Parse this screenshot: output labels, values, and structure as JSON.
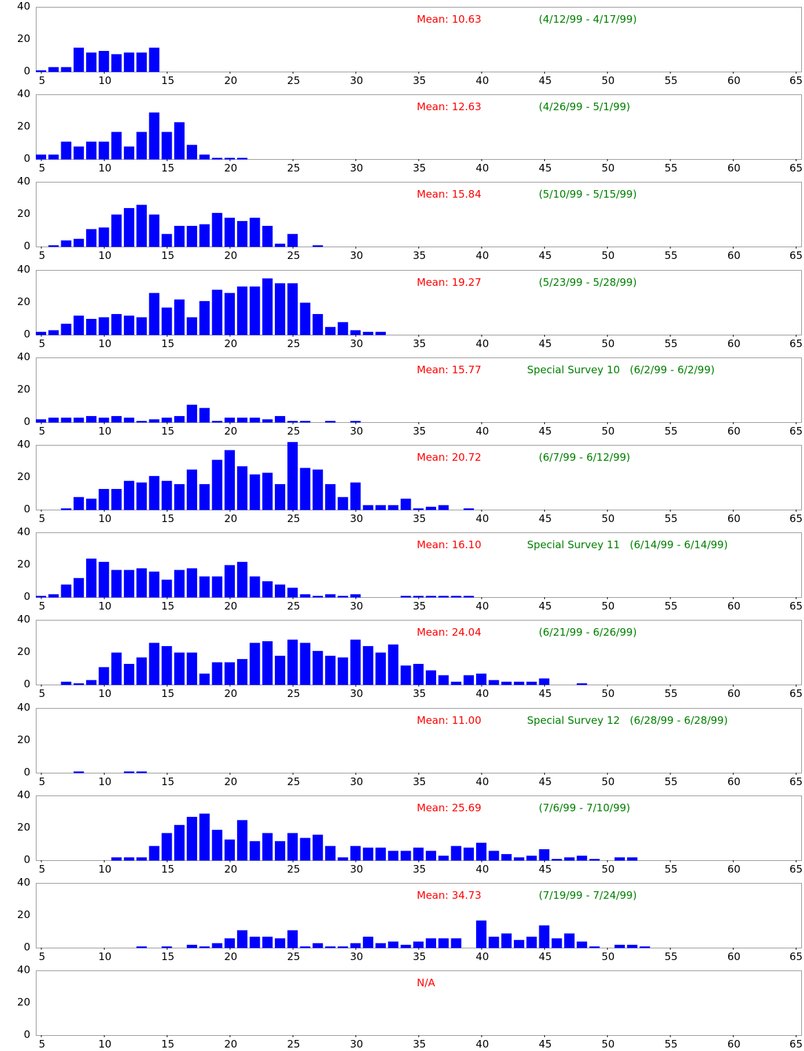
{
  "chart_data": [
    {
      "type": "bar",
      "mean_text": "Mean: 10.63",
      "period_text": "(4/12/99 - 4/17/99)",
      "y_ticks": [
        "40",
        "20",
        "0"
      ],
      "ylim": [
        0,
        40
      ],
      "x_ticks": [
        "5",
        "10",
        "15",
        "20",
        "25",
        "30",
        "35",
        "40",
        "45",
        "50",
        "55",
        "60",
        "65"
      ],
      "xlim": [
        4.5,
        65
      ],
      "x": [
        5,
        6,
        7,
        8,
        9,
        10,
        11,
        12,
        13,
        14
      ],
      "values": [
        1,
        3,
        3,
        15,
        12,
        13,
        11,
        12,
        12,
        15
      ]
    },
    {
      "type": "bar",
      "mean_text": "Mean: 12.63",
      "period_text": "(4/26/99 - 5/1/99)",
      "y_ticks": [
        "40",
        "20",
        "0"
      ],
      "ylim": [
        0,
        40
      ],
      "x_ticks": [
        "5",
        "10",
        "15",
        "20",
        "25",
        "30",
        "35",
        "40",
        "45",
        "50",
        "55",
        "60",
        "65"
      ],
      "xlim": [
        4.5,
        65
      ],
      "x": [
        5,
        6,
        7,
        8,
        9,
        10,
        11,
        12,
        13,
        14,
        15,
        16,
        17,
        18,
        19,
        20,
        21
      ],
      "values": [
        3,
        3,
        11,
        8,
        11,
        11,
        17,
        8,
        17,
        29,
        17,
        23,
        9,
        3,
        1,
        1,
        1
      ]
    },
    {
      "type": "bar",
      "mean_text": "Mean: 15.84",
      "period_text": "(5/10/99 - 5/15/99)",
      "y_ticks": [
        "40",
        "20",
        "0"
      ],
      "ylim": [
        0,
        40
      ],
      "x_ticks": [
        "5",
        "10",
        "15",
        "20",
        "25",
        "30",
        "35",
        "40",
        "45",
        "50",
        "55",
        "60",
        "65"
      ],
      "xlim": [
        4.5,
        65
      ],
      "x": [
        6,
        7,
        8,
        9,
        10,
        11,
        12,
        13,
        14,
        15,
        16,
        17,
        18,
        19,
        20,
        21,
        22,
        23,
        24,
        25,
        27
      ],
      "values": [
        1,
        4,
        5,
        11,
        12,
        20,
        24,
        26,
        20,
        8,
        13,
        13,
        14,
        21,
        18,
        16,
        18,
        13,
        2,
        8,
        1
      ]
    },
    {
      "type": "bar",
      "mean_text": "Mean: 19.27",
      "period_text": "(5/23/99 - 5/28/99)",
      "y_ticks": [
        "40",
        "20",
        "0"
      ],
      "ylim": [
        0,
        40
      ],
      "x_ticks": [
        "5",
        "10",
        "15",
        "20",
        "25",
        "30",
        "35",
        "40",
        "45",
        "50",
        "55",
        "60",
        "65"
      ],
      "xlim": [
        4.5,
        65
      ],
      "x": [
        5,
        6,
        7,
        8,
        9,
        10,
        11,
        12,
        13,
        14,
        15,
        16,
        17,
        18,
        19,
        20,
        21,
        22,
        23,
        24,
        25,
        26,
        27,
        28,
        29,
        30,
        31,
        32
      ],
      "values": [
        2,
        3,
        7,
        12,
        10,
        11,
        13,
        12,
        11,
        26,
        17,
        22,
        11,
        21,
        28,
        26,
        30,
        30,
        35,
        32,
        32,
        20,
        13,
        5,
        8,
        3,
        2,
        2
      ]
    },
    {
      "type": "bar",
      "mean_text": "Mean: 15.77",
      "period_text": "Special Survey 10   (6/2/99 - 6/2/99)",
      "y_ticks": [
        "40",
        "20",
        "0"
      ],
      "ylim": [
        0,
        40
      ],
      "x_ticks": [
        "5",
        "10",
        "15",
        "20",
        "25",
        "30",
        "35",
        "40",
        "45",
        "50",
        "55",
        "60",
        "65"
      ],
      "xlim": [
        4.5,
        65
      ],
      "x": [
        5,
        6,
        7,
        8,
        9,
        10,
        11,
        12,
        13,
        14,
        15,
        16,
        17,
        18,
        19,
        20,
        21,
        22,
        23,
        24,
        25,
        26,
        28,
        30
      ],
      "values": [
        2,
        3,
        3,
        3,
        4,
        3,
        4,
        3,
        1,
        2,
        3,
        4,
        11,
        9,
        1,
        3,
        3,
        3,
        2,
        4,
        1,
        1,
        1,
        1
      ]
    },
    {
      "type": "bar",
      "mean_text": "Mean: 20.72",
      "period_text": "(6/7/99 - 6/12/99)",
      "y_ticks": [
        "40",
        "20",
        "0"
      ],
      "ylim": [
        0,
        40
      ],
      "x_ticks": [
        "5",
        "10",
        "15",
        "20",
        "25",
        "30",
        "35",
        "40",
        "45",
        "50",
        "55",
        "60",
        "65"
      ],
      "xlim": [
        4.5,
        65
      ],
      "x": [
        7,
        8,
        9,
        10,
        11,
        12,
        13,
        14,
        15,
        16,
        17,
        18,
        19,
        20,
        21,
        22,
        23,
        24,
        25,
        26,
        27,
        28,
        29,
        30,
        31,
        32,
        33,
        34,
        35,
        36,
        37,
        39
      ],
      "values": [
        1,
        8,
        7,
        13,
        13,
        18,
        17,
        21,
        18,
        16,
        25,
        16,
        31,
        37,
        27,
        22,
        23,
        16,
        42,
        26,
        25,
        16,
        8,
        17,
        3,
        3,
        3,
        7,
        1,
        2,
        3,
        1
      ]
    },
    {
      "type": "bar",
      "mean_text": "Mean: 16.10",
      "period_text": "Special Survey 11   (6/14/99 - 6/14/99)",
      "y_ticks": [
        "40",
        "20",
        "0"
      ],
      "ylim": [
        0,
        40
      ],
      "x_ticks": [
        "5",
        "10",
        "15",
        "20",
        "25",
        "30",
        "35",
        "40",
        "45",
        "50",
        "55",
        "60",
        "65"
      ],
      "xlim": [
        4.5,
        65
      ],
      "x": [
        5,
        6,
        7,
        8,
        9,
        10,
        11,
        12,
        13,
        14,
        15,
        16,
        17,
        18,
        19,
        20,
        21,
        22,
        23,
        24,
        25,
        26,
        27,
        28,
        29,
        30,
        34,
        35,
        36,
        37,
        38,
        39
      ],
      "values": [
        1,
        2,
        8,
        12,
        24,
        22,
        17,
        17,
        18,
        16,
        11,
        17,
        18,
        13,
        13,
        20,
        22,
        13,
        10,
        8,
        6,
        2,
        1,
        2,
        1,
        2,
        1,
        1,
        1,
        1,
        1,
        1
      ]
    },
    {
      "type": "bar",
      "mean_text": "Mean: 24.04",
      "period_text": "(6/21/99 - 6/26/99)",
      "y_ticks": [
        "40",
        "20",
        "0"
      ],
      "ylim": [
        0,
        40
      ],
      "x_ticks": [
        "5",
        "10",
        "15",
        "20",
        "25",
        "30",
        "35",
        "40",
        "45",
        "50",
        "55",
        "60",
        "65"
      ],
      "xlim": [
        4.5,
        65
      ],
      "x": [
        7,
        8,
        9,
        10,
        11,
        12,
        13,
        14,
        15,
        16,
        17,
        18,
        19,
        20,
        21,
        22,
        23,
        24,
        25,
        26,
        27,
        28,
        29,
        30,
        31,
        32,
        33,
        34,
        35,
        36,
        37,
        38,
        39,
        40,
        41,
        42,
        43,
        44,
        45,
        48
      ],
      "values": [
        2,
        1,
        3,
        11,
        20,
        13,
        17,
        26,
        24,
        20,
        20,
        7,
        14,
        14,
        16,
        26,
        27,
        18,
        28,
        26,
        21,
        18,
        17,
        28,
        24,
        20,
        25,
        12,
        13,
        9,
        6,
        2,
        6,
        7,
        3,
        2,
        2,
        2,
        4,
        1
      ]
    },
    {
      "type": "bar",
      "mean_text": "Mean: 11.00",
      "period_text": "Special Survey 12   (6/28/99 - 6/28/99)",
      "y_ticks": [
        "40",
        "20",
        "0"
      ],
      "ylim": [
        0,
        40
      ],
      "x_ticks": [
        "5",
        "10",
        "15",
        "20",
        "25",
        "30",
        "35",
        "40",
        "45",
        "50",
        "55",
        "60",
        "65"
      ],
      "xlim": [
        4.5,
        65
      ],
      "x": [
        8,
        12,
        13
      ],
      "values": [
        1,
        1,
        1
      ]
    },
    {
      "type": "bar",
      "mean_text": "Mean: 25.69",
      "period_text": "(7/6/99 - 7/10/99)",
      "y_ticks": [
        "40",
        "20",
        "0"
      ],
      "ylim": [
        0,
        40
      ],
      "x_ticks": [
        "5",
        "10",
        "15",
        "20",
        "25",
        "30",
        "35",
        "40",
        "45",
        "50",
        "55",
        "60",
        "65"
      ],
      "xlim": [
        4.5,
        65
      ],
      "x": [
        11,
        12,
        13,
        14,
        15,
        16,
        17,
        18,
        19,
        20,
        21,
        22,
        23,
        24,
        25,
        26,
        27,
        28,
        29,
        30,
        31,
        32,
        33,
        34,
        35,
        36,
        37,
        38,
        39,
        40,
        41,
        42,
        43,
        44,
        45,
        46,
        47,
        48,
        49,
        51,
        52
      ],
      "values": [
        2,
        2,
        2,
        9,
        17,
        22,
        27,
        29,
        19,
        13,
        25,
        12,
        17,
        12,
        17,
        14,
        16,
        9,
        2,
        9,
        8,
        8,
        6,
        6,
        8,
        6,
        3,
        9,
        8,
        11,
        6,
        4,
        2,
        3,
        7,
        1,
        2,
        3,
        1,
        2,
        2
      ]
    },
    {
      "type": "bar",
      "mean_text": "Mean: 34.73",
      "period_text": "(7/19/99 - 7/24/99)",
      "y_ticks": [
        "40",
        "20",
        "0"
      ],
      "ylim": [
        0,
        40
      ],
      "x_ticks": [
        "5",
        "10",
        "15",
        "20",
        "25",
        "30",
        "35",
        "40",
        "45",
        "50",
        "55",
        "60",
        "65"
      ],
      "xlim": [
        4.5,
        65
      ],
      "x": [
        13,
        15,
        17,
        18,
        19,
        20,
        21,
        22,
        23,
        24,
        25,
        26,
        27,
        28,
        29,
        30,
        31,
        32,
        33,
        34,
        35,
        36,
        37,
        38,
        40,
        41,
        42,
        43,
        44,
        45,
        46,
        47,
        48,
        49,
        51,
        52,
        53
      ],
      "values": [
        1,
        1,
        2,
        1,
        3,
        6,
        11,
        7,
        7,
        6,
        11,
        1,
        3,
        1,
        1,
        3,
        7,
        3,
        4,
        2,
        4,
        6,
        6,
        6,
        17,
        7,
        9,
        5,
        7,
        14,
        6,
        9,
        4,
        1,
        2,
        2,
        1
      ]
    },
    {
      "type": "bar",
      "mean_text": "N/A",
      "period_text": "",
      "y_ticks": [
        "40",
        "20",
        "0"
      ],
      "ylim": [
        0,
        40
      ],
      "x_ticks": [
        "5",
        "10",
        "15",
        "20",
        "25",
        "30",
        "35",
        "40",
        "45",
        "50",
        "55",
        "60",
        "65"
      ],
      "xlim": [
        4.5,
        65
      ],
      "x": [],
      "values": []
    }
  ],
  "colors": {
    "bar": "#0000ff",
    "mean": "#ff0000",
    "period": "#008000",
    "frame": "#999999"
  }
}
